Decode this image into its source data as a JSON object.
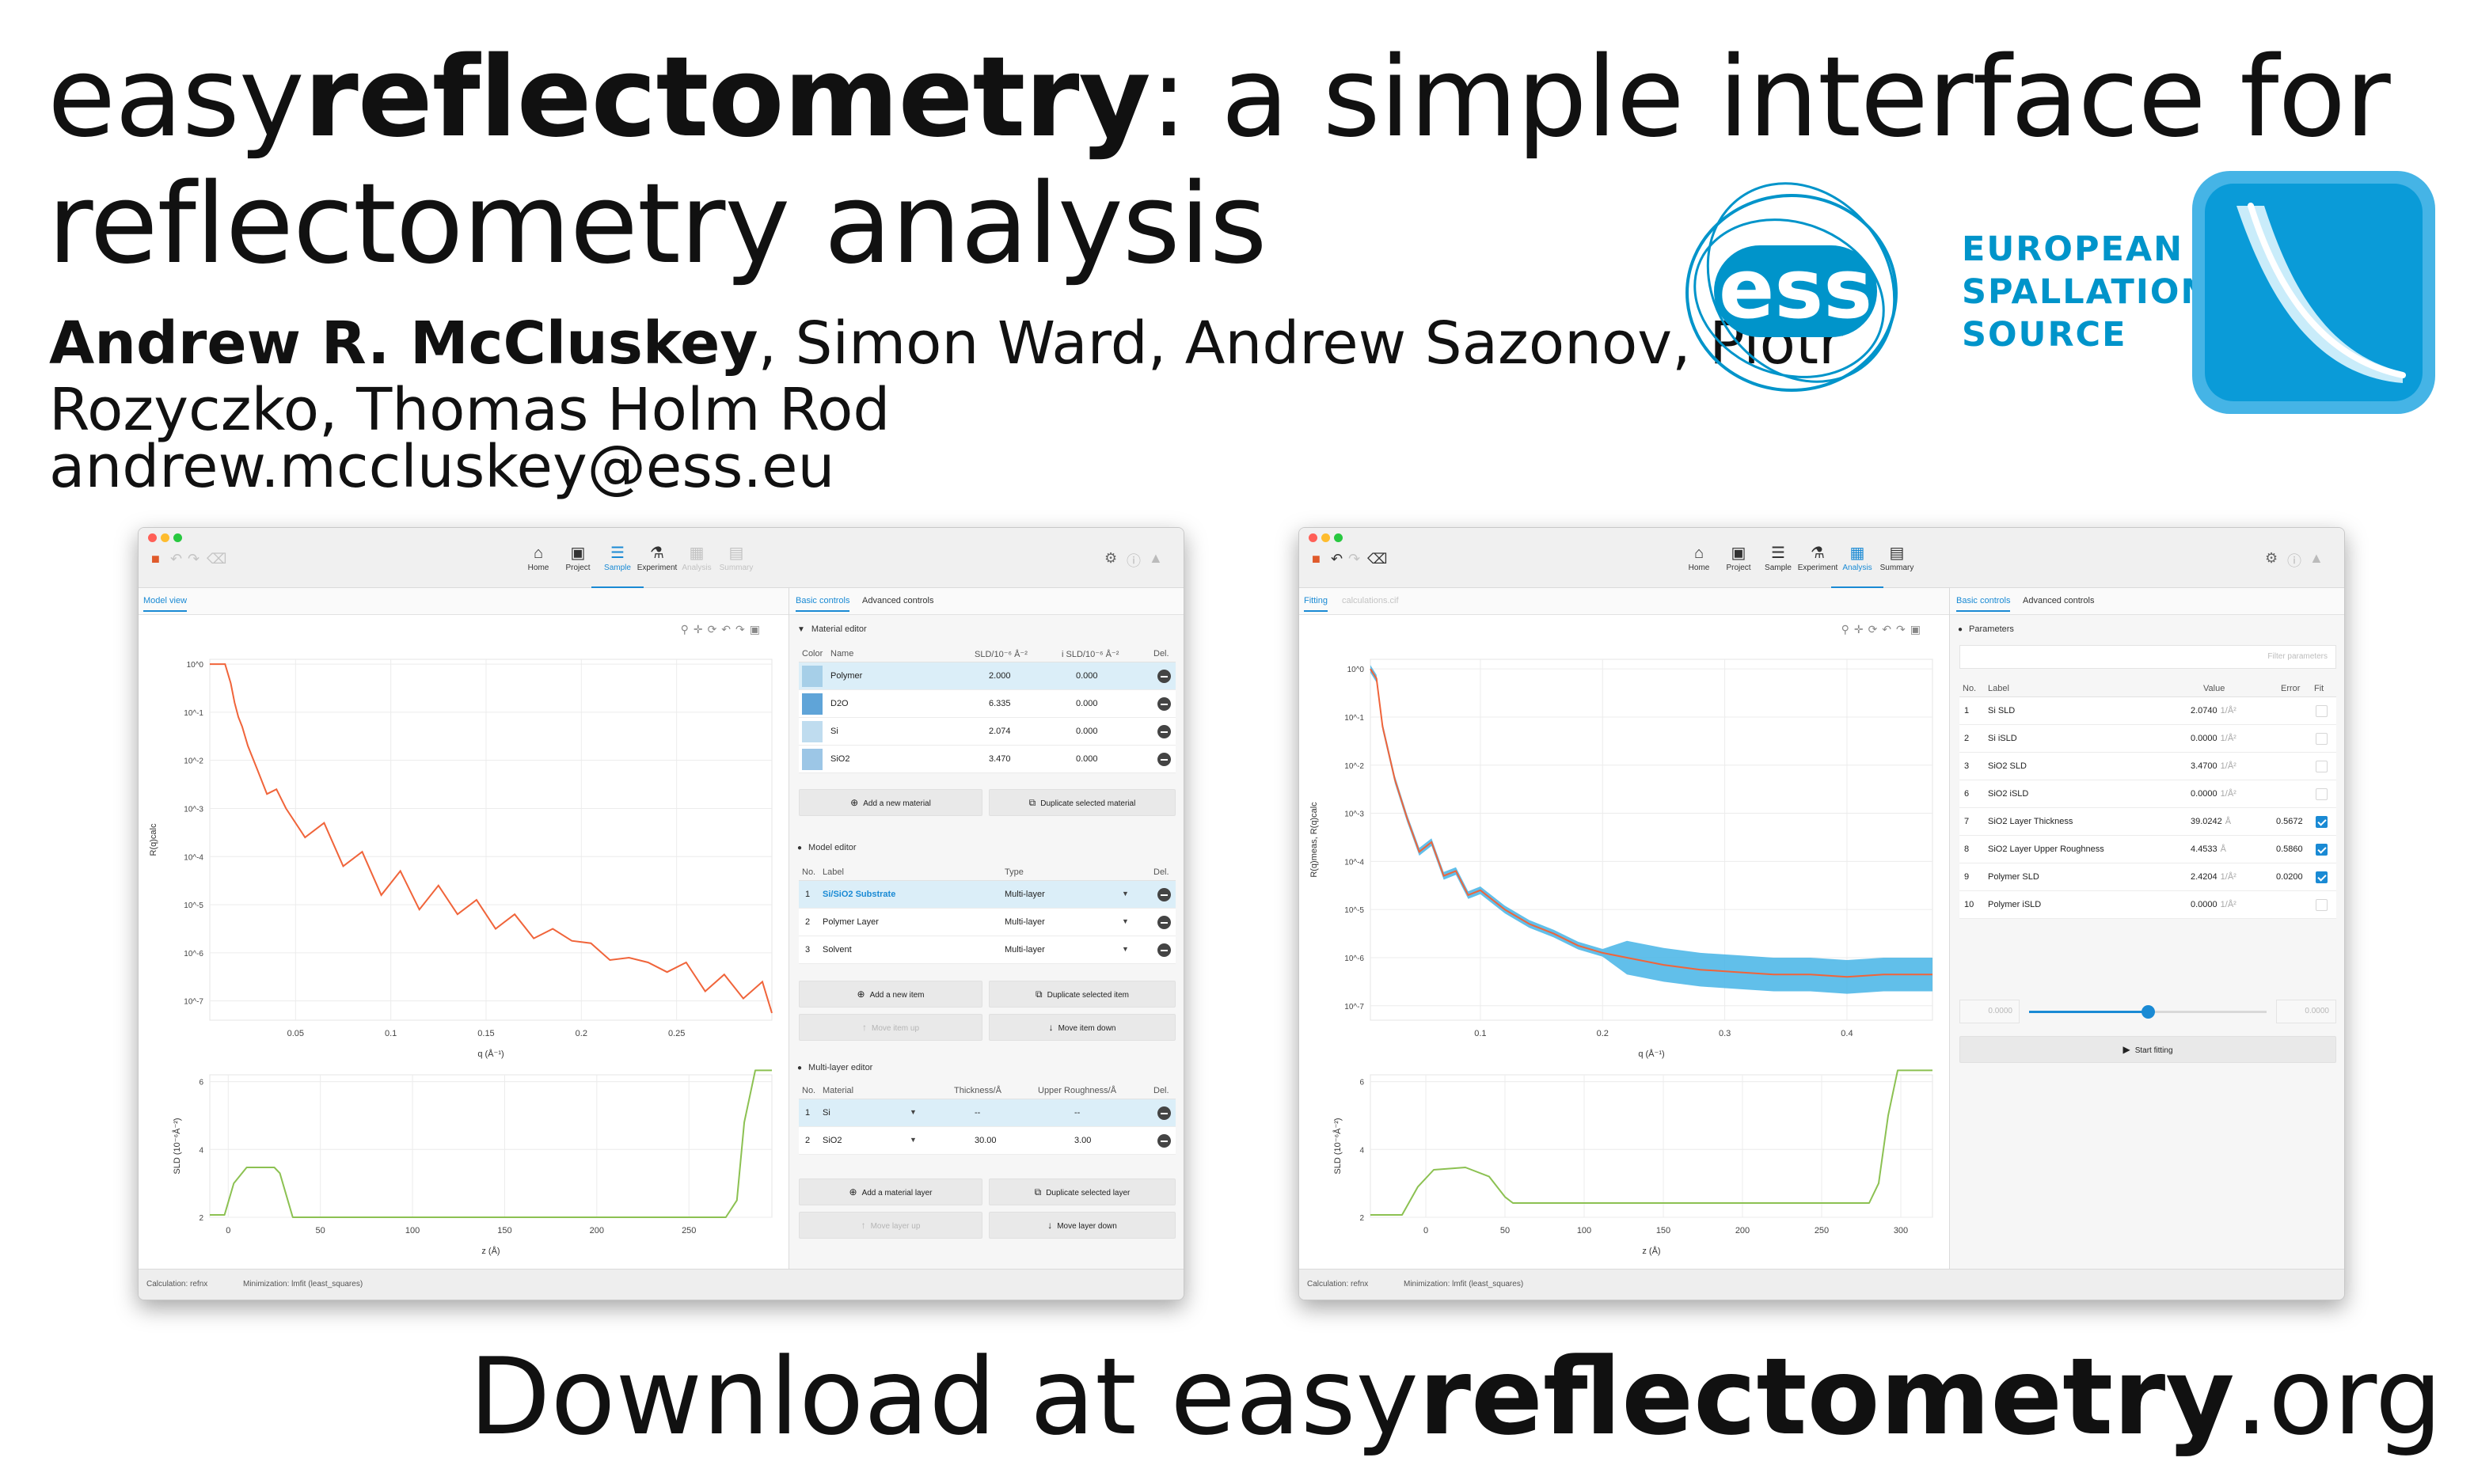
{
  "poster": {
    "title_prefix": "easy",
    "title_brand": "reflectometry",
    "title_rest_line1": ": a simple interface for",
    "title_line2": "reflectometry analysis",
    "lead_author": "Andrew R. McCluskey",
    "coauthors_line1": ", Simon Ward, Andrew Sazonov, Piotr",
    "coauthors_line2": "Rozyczko, Thomas Holm Rod",
    "email": "andrew.mccluskey@ess.eu",
    "ess_logo_mark": "ess",
    "ess_name_line1": "EUROPEAN",
    "ess_name_line2": "SPALLATION",
    "ess_name_line3": "SOURCE",
    "download_prefix": "Download at easy",
    "download_brand": "reflectometry",
    "download_suffix": ".org"
  },
  "colors": {
    "accent": "#1a8ad4",
    "ess_blue": "#0094ca",
    "reflectivity_curve": "#f0643a",
    "sld_curve": "#8cc152",
    "error_band": "#45b4e6"
  },
  "nav": {
    "home": "Home",
    "project": "Project",
    "sample": "Sample",
    "experiment": "Experiment",
    "analysis": "Analysis",
    "summary": "Summary"
  },
  "sample_window": {
    "left_tab": "Model view",
    "right_tabs": [
      "Basic controls",
      "Advanced controls"
    ],
    "material_editor": {
      "title": "Material editor",
      "headers": [
        "Color",
        "Name",
        "SLD/10⁻⁶ Å⁻²",
        "i SLD/10⁻⁶ Å⁻²",
        "Del."
      ],
      "rows": [
        {
          "name": "Polymer",
          "sld": "2.000",
          "isld": "0.000",
          "color": "#a6cfe8"
        },
        {
          "name": "D2O",
          "sld": "6.335",
          "isld": "0.000",
          "color": "#5fa4d8"
        },
        {
          "name": "Si",
          "sld": "2.074",
          "isld": "0.000",
          "color": "#bfdcef"
        },
        {
          "name": "SiO2",
          "sld": "3.470",
          "isld": "0.000",
          "color": "#9cc6e6"
        }
      ],
      "add_button": "Add a new material",
      "duplicate_button": "Duplicate selected material"
    },
    "model_editor": {
      "title": "Model editor",
      "headers": [
        "No.",
        "Label",
        "Type",
        "Del."
      ],
      "rows": [
        {
          "no": "1",
          "label": "Si/SiO2 Substrate",
          "type": "Multi-layer"
        },
        {
          "no": "2",
          "label": "Polymer Layer",
          "type": "Multi-layer"
        },
        {
          "no": "3",
          "label": "Solvent",
          "type": "Multi-layer"
        }
      ],
      "add_button": "Add a new item",
      "duplicate_button": "Duplicate selected item",
      "move_up_button": "Move item up",
      "move_down_button": "Move item down"
    },
    "multilayer_editor": {
      "title": "Multi-layer editor",
      "headers": [
        "No.",
        "Material",
        "Thickness/Å",
        "Upper Roughness/Å",
        "Del."
      ],
      "rows": [
        {
          "no": "1",
          "material": "Si",
          "thickness": "--",
          "roughness": "--"
        },
        {
          "no": "2",
          "material": "SiO2",
          "thickness": "30.00",
          "roughness": "3.00"
        }
      ],
      "add_button": "Add a material layer",
      "duplicate_button": "Duplicate selected layer",
      "move_up_button": "Move layer up",
      "move_down_button": "Move layer down"
    },
    "status": {
      "calculation": "Calculation: refnx",
      "minimization": "Minimization: lmfit (least_squares)"
    }
  },
  "analysis_window": {
    "left_tabs": [
      "Fitting",
      "calculations.cif"
    ],
    "right_tabs": [
      "Basic controls",
      "Advanced controls"
    ],
    "parameters": {
      "title": "Parameters",
      "filter_placeholder": "Filter parameters",
      "headers": [
        "No.",
        "Label",
        "Value",
        "Error",
        "Fit"
      ],
      "rows": [
        {
          "no": "1",
          "label": "Si SLD",
          "value": "2.0740",
          "unit": "1/Å²",
          "error": "",
          "fit": false
        },
        {
          "no": "2",
          "label": "Si iSLD",
          "value": "0.0000",
          "unit": "1/Å²",
          "error": "",
          "fit": false
        },
        {
          "no": "3",
          "label": "SiO2 SLD",
          "value": "3.4700",
          "unit": "1/Å²",
          "error": "",
          "fit": false
        },
        {
          "no": "6",
          "label": "SiO2 iSLD",
          "value": "0.0000",
          "unit": "1/Å²",
          "error": "",
          "fit": false
        },
        {
          "no": "7",
          "label": "SiO2 Layer Thickness",
          "value": "39.0242",
          "unit": "Å",
          "error": "0.5672",
          "fit": true
        },
        {
          "no": "8",
          "label": "SiO2 Layer Upper Roughness",
          "value": "4.4533",
          "unit": "Å",
          "error": "0.5860",
          "fit": true
        },
        {
          "no": "9",
          "label": "Polymer SLD",
          "value": "2.4204",
          "unit": "1/Å²",
          "error": "0.0200",
          "fit": true
        },
        {
          "no": "10",
          "label": "Polymer iSLD",
          "value": "0.0000",
          "unit": "1/Å²",
          "error": "",
          "fit": false
        }
      ],
      "slider_min": "0.0000",
      "slider_max": "0.0000",
      "slider_fraction": 0.5,
      "start_button": "Start fitting"
    },
    "status": {
      "calculation": "Calculation: refnx",
      "minimization": "Minimization: lmfit (least_squares)"
    }
  },
  "chart_data": [
    {
      "id": "sample-reflectivity",
      "type": "line",
      "xlabel": "q (Å⁻¹)",
      "ylabel": "R(q)calc",
      "x_ticks": [
        "0.05",
        "0.1",
        "0.15",
        "0.2",
        "0.25"
      ],
      "y_ticks": [
        "10^0",
        "10^-1",
        "10^-2",
        "10^-3",
        "10^-4",
        "10^-5",
        "10^-6",
        "10^-7"
      ],
      "xlim": [
        0.005,
        0.3
      ],
      "ylim_log10": [
        -7.4,
        0.1
      ],
      "series": [
        {
          "x": [
            0.005,
            0.013,
            0.016,
            0.018,
            0.02,
            0.022,
            0.025,
            0.03,
            0.035,
            0.04,
            0.045,
            0.055,
            0.065,
            0.075,
            0.085,
            0.095,
            0.105,
            0.115,
            0.125,
            0.135,
            0.145,
            0.155,
            0.165,
            0.175,
            0.185,
            0.195,
            0.205,
            0.215,
            0.225,
            0.235,
            0.245,
            0.255,
            0.265,
            0.275,
            0.285,
            0.295,
            0.3
          ],
          "y_log10": [
            0.0,
            0.0,
            -0.4,
            -0.8,
            -1.1,
            -1.3,
            -1.7,
            -2.2,
            -2.7,
            -2.6,
            -3.0,
            -3.6,
            -3.3,
            -4.2,
            -3.9,
            -4.8,
            -4.3,
            -5.1,
            -4.6,
            -5.2,
            -4.9,
            -5.5,
            -5.2,
            -5.7,
            -5.5,
            -5.75,
            -5.8,
            -6.15,
            -6.1,
            -6.2,
            -6.4,
            -6.2,
            -6.8,
            -6.45,
            -6.95,
            -6.6,
            -7.25
          ]
        }
      ]
    },
    {
      "id": "sample-sld",
      "type": "line",
      "xlabel": "z (Å)",
      "ylabel": "SLD (10⁻⁶Å⁻²)",
      "x_ticks": [
        "0",
        "50",
        "100",
        "150",
        "200",
        "250"
      ],
      "y_ticks": [
        "2",
        "4",
        "6"
      ],
      "xlim": [
        -10,
        295
      ],
      "ylim": [
        2,
        6.2
      ],
      "series": [
        {
          "z": [
            -10,
            -2,
            3,
            10,
            25,
            28,
            35,
            50,
            100,
            200,
            270,
            276,
            280,
            286,
            295
          ],
          "sld": [
            2.07,
            2.07,
            3.0,
            3.47,
            3.47,
            3.3,
            2.0,
            2.0,
            2.0,
            2.0,
            2.0,
            2.5,
            4.8,
            6.33,
            6.33
          ]
        }
      ]
    },
    {
      "id": "analysis-reflectivity",
      "type": "line",
      "xlabel": "q (Å⁻¹)",
      "ylabel": "R(q)meas, R(q)calc",
      "x_ticks": [
        "0.1",
        "0.2",
        "0.3",
        "0.4"
      ],
      "y_ticks": [
        "10^0",
        "10^-1",
        "10^-2",
        "10^-3",
        "10^-4",
        "10^-5",
        "10^-6",
        "10^-7"
      ],
      "xlim": [
        0.01,
        0.47
      ],
      "ylim_log10": [
        -7.3,
        0.2
      ],
      "series": [
        {
          "name": "",
          "x": [
            0.01,
            0.015,
            0.02,
            0.03,
            0.04,
            0.05,
            0.06,
            0.07,
            0.08,
            0.09,
            0.1,
            0.12,
            0.14,
            0.16,
            0.18,
            0.2,
            0.22,
            0.25,
            0.28,
            0.31,
            0.34,
            0.37,
            0.4,
            0.43,
            0.46,
            0.47
          ],
          "y_log10": [
            0.0,
            -0.2,
            -1.2,
            -2.3,
            -3.1,
            -3.8,
            -3.6,
            -4.3,
            -4.2,
            -4.7,
            -4.6,
            -5.0,
            -5.3,
            -5.5,
            -5.75,
            -5.9,
            -6.0,
            -6.15,
            -6.25,
            -6.3,
            -6.35,
            -6.35,
            -6.4,
            -6.35,
            -6.35,
            -6.35
          ]
        }
      ]
    },
    {
      "id": "analysis-sld",
      "type": "line",
      "xlabel": "z (Å)",
      "ylabel": "SLD (10⁻⁶Å⁻²)",
      "x_ticks": [
        "0",
        "50",
        "100",
        "150",
        "200",
        "250",
        "300"
      ],
      "y_ticks": [
        "2",
        "4",
        "6"
      ],
      "xlim": [
        -35,
        320
      ],
      "ylim": [
        2,
        6.2
      ],
      "series": [
        {
          "z": [
            -35,
            -15,
            -5,
            5,
            25,
            40,
            50,
            55,
            100,
            200,
            280,
            286,
            292,
            298,
            320
          ],
          "sld": [
            2.07,
            2.07,
            2.9,
            3.4,
            3.47,
            3.2,
            2.6,
            2.42,
            2.42,
            2.42,
            2.42,
            3.0,
            5.0,
            6.33,
            6.33
          ]
        }
      ]
    }
  ]
}
